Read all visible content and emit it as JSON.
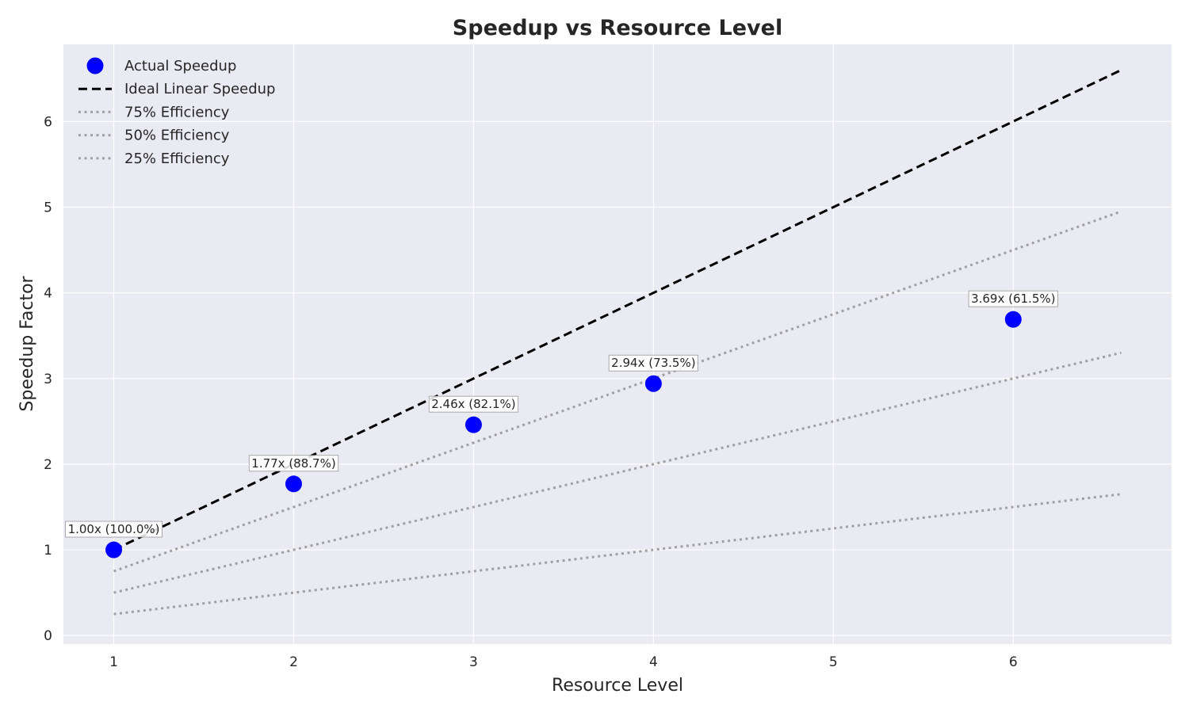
{
  "chart_data": {
    "type": "scatter",
    "title": "Speedup vs Resource Level",
    "xlabel": "Resource Level",
    "ylabel": "Speedup Factor",
    "xlim": [
      0.72,
      6.88
    ],
    "ylim": [
      -0.1,
      6.9
    ],
    "xticks": [
      1,
      2,
      3,
      4,
      5,
      6
    ],
    "yticks": [
      0,
      1,
      2,
      3,
      4,
      5,
      6
    ],
    "grid": true,
    "legend_position": "upper-left",
    "series": [
      {
        "name": "Actual Speedup",
        "kind": "scatter",
        "color": "#0000ff",
        "x": [
          1,
          2,
          3,
          4,
          6
        ],
        "y": [
          1.0,
          1.77,
          2.46,
          2.94,
          3.69
        ],
        "labels": [
          "1.00x (100.0%)",
          "1.77x (88.7%)",
          "2.46x (82.1%)",
          "2.94x (73.5%)",
          "3.69x (61.5%)"
        ]
      },
      {
        "name": "Ideal Linear Speedup",
        "kind": "line",
        "style": "dashed",
        "color": "#000000",
        "x": [
          1,
          6.6
        ],
        "y": [
          1,
          6.6
        ]
      },
      {
        "name": "75% Efficiency",
        "kind": "line",
        "style": "dotted",
        "color": "#a0a0a0",
        "x": [
          1,
          6.6
        ],
        "y": [
          0.75,
          4.95
        ]
      },
      {
        "name": "50% Efficiency",
        "kind": "line",
        "style": "dotted",
        "color": "#a0a0a0",
        "x": [
          1,
          6.6
        ],
        "y": [
          0.5,
          3.3
        ]
      },
      {
        "name": "25% Efficiency",
        "kind": "line",
        "style": "dotted",
        "color": "#a0a0a0",
        "x": [
          1,
          6.6
        ],
        "y": [
          0.25,
          1.65
        ]
      }
    ],
    "colors": {
      "plot_background": "#eaeaf2",
      "grid": "#ffffff"
    }
  }
}
